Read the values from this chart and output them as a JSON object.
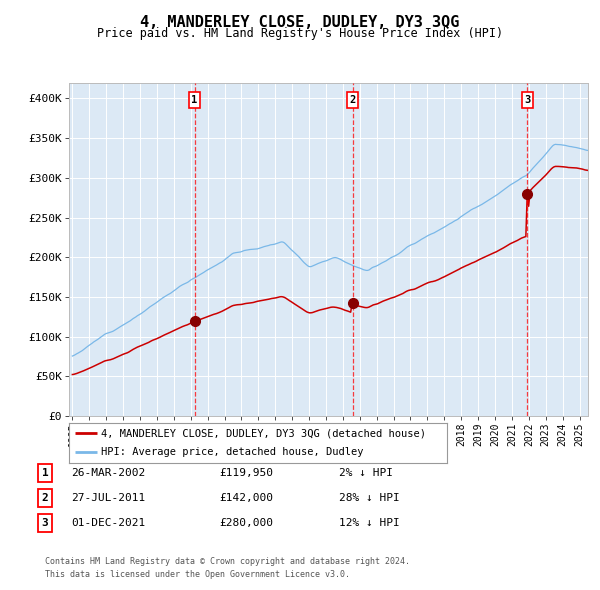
{
  "title": "4, MANDERLEY CLOSE, DUDLEY, DY3 3QG",
  "subtitle": "Price paid vs. HM Land Registry's House Price Index (HPI)",
  "bg_color": "#dce9f5",
  "hpi_color": "#7ab8e8",
  "price_color": "#cc0000",
  "sale_marker_color": "#880000",
  "sale_dates_num": [
    2002.23,
    2011.57,
    2021.92
  ],
  "sale_prices": [
    119950,
    142000,
    280000
  ],
  "sale_labels": [
    "1",
    "2",
    "3"
  ],
  "sale_date_strings": [
    "26-MAR-2002",
    "27-JUL-2011",
    "01-DEC-2021"
  ],
  "sale_price_strings": [
    "£119,950",
    "£142,000",
    "£280,000"
  ],
  "sale_pct_strings": [
    "2% ↓ HPI",
    "28% ↓ HPI",
    "12% ↓ HPI"
  ],
  "ylim": [
    0,
    420000
  ],
  "xlim": [
    1994.8,
    2025.5
  ],
  "yticks": [
    0,
    50000,
    100000,
    150000,
    200000,
    250000,
    300000,
    350000,
    400000
  ],
  "ytick_labels": [
    "£0",
    "£50K",
    "£100K",
    "£150K",
    "£200K",
    "£250K",
    "£300K",
    "£350K",
    "£400K"
  ],
  "legend_line1": "4, MANDERLEY CLOSE, DUDLEY, DY3 3QG (detached house)",
  "legend_line2": "HPI: Average price, detached house, Dudley",
  "footer1": "Contains HM Land Registry data © Crown copyright and database right 2024.",
  "footer2": "This data is licensed under the Open Government Licence v3.0."
}
